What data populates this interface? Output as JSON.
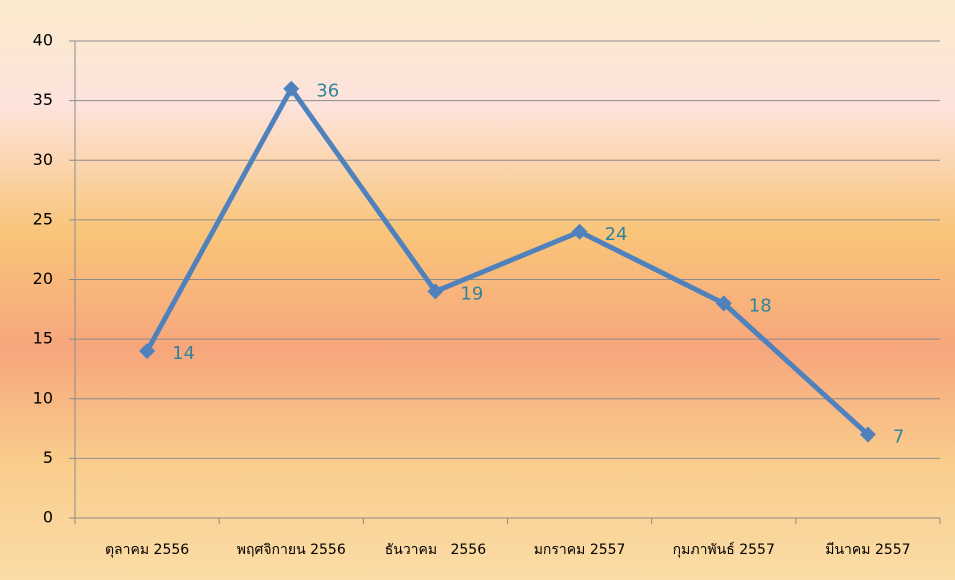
{
  "chart_data": {
    "type": "line",
    "categories": [
      "ตุลาคม 2556",
      "พฤศจิกายน 2556",
      "ธันวาคม   2556",
      "มกราคม 2557",
      "กุมภาพันธ์ 2557",
      "มีนาคม 2557"
    ],
    "series": [
      {
        "color": "#4f81bd",
        "values": [
          14,
          36,
          19,
          24,
          18,
          7
        ]
      }
    ],
    "ylim": [
      0,
      40
    ],
    "yticks": [
      0,
      5,
      10,
      15,
      20,
      25,
      30,
      35,
      40
    ],
    "grid": true,
    "data_labels": true
  }
}
